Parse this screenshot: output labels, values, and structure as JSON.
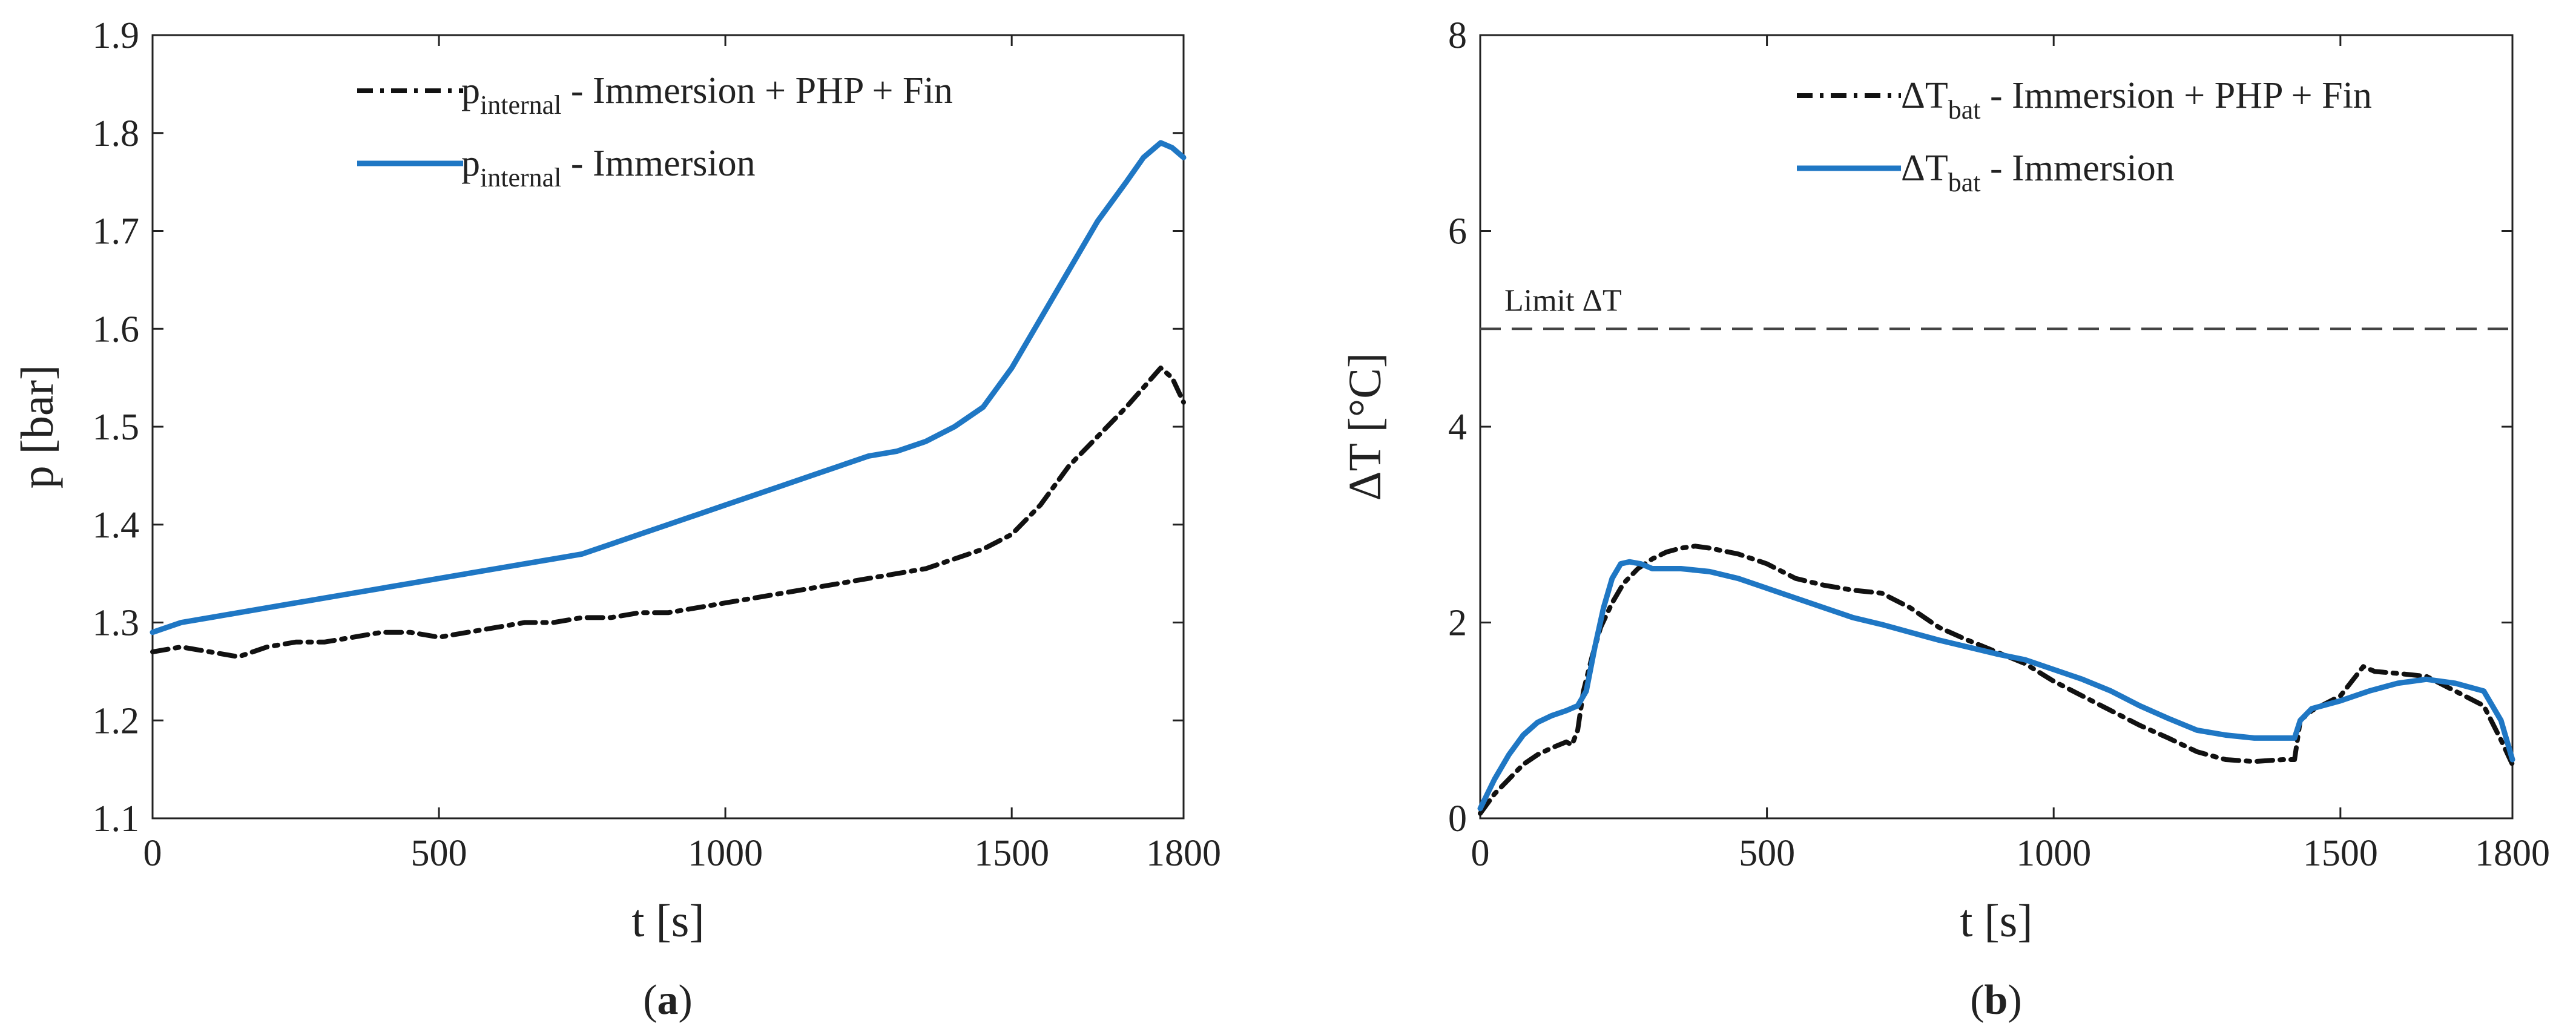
{
  "chart_data": [
    {
      "type": "line",
      "panel": "a",
      "caption_open": "(",
      "caption_letter": "a",
      "caption_close": ")",
      "title": "",
      "xlabel": "t [s]",
      "ylabel": "p [bar]",
      "xlim": [
        0,
        1800
      ],
      "ylim": [
        1.1,
        1.9
      ],
      "xticks": [
        0,
        500,
        1000,
        1500,
        1800
      ],
      "xtick_labels": [
        "0",
        "500",
        "1000",
        "1500",
        "1800"
      ],
      "yticks": [
        1.1,
        1.2,
        1.3,
        1.4,
        1.5,
        1.6,
        1.7,
        1.8,
        1.9
      ],
      "ytick_labels": [
        "1.1",
        "1.2",
        "1.3",
        "1.4",
        "1.5",
        "1.6",
        "1.7",
        "1.8",
        "1.9"
      ],
      "legend_position": "top-right",
      "series": [
        {
          "name": "p_internal - Immersion + PHP + Fin",
          "legend_main": "p",
          "legend_sub": "internal",
          "legend_rest": " - Immersion + PHP + Fin",
          "color": "#111111",
          "style": "dashdot",
          "x": [
            0,
            50,
            100,
            150,
            200,
            250,
            300,
            350,
            400,
            450,
            500,
            550,
            600,
            650,
            700,
            750,
            800,
            850,
            900,
            950,
            1000,
            1050,
            1100,
            1150,
            1200,
            1250,
            1300,
            1350,
            1400,
            1450,
            1500,
            1550,
            1600,
            1650,
            1700,
            1730,
            1760,
            1780,
            1800
          ],
          "y": [
            1.27,
            1.275,
            1.27,
            1.265,
            1.275,
            1.28,
            1.28,
            1.285,
            1.29,
            1.29,
            1.285,
            1.29,
            1.295,
            1.3,
            1.3,
            1.305,
            1.305,
            1.31,
            1.31,
            1.315,
            1.32,
            1.325,
            1.33,
            1.335,
            1.34,
            1.345,
            1.35,
            1.355,
            1.365,
            1.375,
            1.39,
            1.42,
            1.46,
            1.49,
            1.52,
            1.54,
            1.56,
            1.55,
            1.525
          ]
        },
        {
          "name": "p_internal - Immersion",
          "legend_main": "p",
          "legend_sub": "internal",
          "legend_rest": " - Immersion",
          "color": "#1f77c4",
          "style": "solid",
          "x": [
            0,
            50,
            100,
            150,
            200,
            250,
            300,
            350,
            400,
            450,
            500,
            550,
            600,
            650,
            700,
            750,
            800,
            850,
            900,
            950,
            1000,
            1050,
            1100,
            1150,
            1200,
            1250,
            1300,
            1350,
            1400,
            1450,
            1500,
            1550,
            1600,
            1650,
            1700,
            1730,
            1760,
            1780,
            1800
          ],
          "y": [
            1.29,
            1.3,
            1.305,
            1.31,
            1.315,
            1.32,
            1.325,
            1.33,
            1.335,
            1.34,
            1.345,
            1.35,
            1.355,
            1.36,
            1.365,
            1.37,
            1.38,
            1.39,
            1.4,
            1.41,
            1.42,
            1.43,
            1.44,
            1.45,
            1.46,
            1.47,
            1.475,
            1.485,
            1.5,
            1.52,
            1.56,
            1.61,
            1.66,
            1.71,
            1.75,
            1.775,
            1.79,
            1.785,
            1.775
          ]
        }
      ]
    },
    {
      "type": "line",
      "panel": "b",
      "caption_open": "(",
      "caption_letter": "b",
      "caption_close": ")",
      "title": "",
      "xlabel": "t [s]",
      "ylabel": "ΔT [°C]",
      "xlim": [
        0,
        1800
      ],
      "ylim": [
        0,
        8
      ],
      "xticks": [
        0,
        500,
        1000,
        1500,
        1800
      ],
      "xtick_labels": [
        "0",
        "500",
        "1000",
        "1500",
        "1800"
      ],
      "yticks": [
        0,
        2,
        4,
        6,
        8
      ],
      "ytick_labels": [
        "0",
        "2",
        "4",
        "6",
        "8"
      ],
      "legend_position": "top-right",
      "annotations": [
        {
          "text": "Limit ΔT",
          "y": 5,
          "style": "dashed",
          "color": "#444444"
        }
      ],
      "series": [
        {
          "name": "ΔT_bat - Immersion + PHP + Fin",
          "legend_main": "ΔT",
          "legend_sub": "bat",
          "legend_rest": " - Immersion + PHP + Fin",
          "color": "#111111",
          "style": "dashdot",
          "x": [
            0,
            25,
            50,
            75,
            100,
            125,
            150,
            160,
            170,
            180,
            195,
            210,
            230,
            250,
            275,
            300,
            325,
            350,
            375,
            400,
            450,
            500,
            550,
            600,
            650,
            700,
            750,
            800,
            850,
            900,
            950,
            1000,
            1050,
            1100,
            1150,
            1200,
            1250,
            1300,
            1350,
            1400,
            1420,
            1430,
            1450,
            1500,
            1540,
            1560,
            1600,
            1650,
            1700,
            1750,
            1780,
            1800
          ],
          "y": [
            0.05,
            0.25,
            0.4,
            0.55,
            0.65,
            0.72,
            0.78,
            0.75,
            0.9,
            1.3,
            1.65,
            1.95,
            2.2,
            2.4,
            2.55,
            2.65,
            2.72,
            2.76,
            2.78,
            2.76,
            2.7,
            2.6,
            2.45,
            2.38,
            2.33,
            2.3,
            2.15,
            1.95,
            1.82,
            1.7,
            1.58,
            1.4,
            1.25,
            1.1,
            0.95,
            0.82,
            0.68,
            0.6,
            0.58,
            0.6,
            0.6,
            1.0,
            1.1,
            1.25,
            1.55,
            1.5,
            1.48,
            1.45,
            1.3,
            1.15,
            0.8,
            0.55
          ]
        },
        {
          "name": "ΔT_bat - Immersion",
          "legend_main": "ΔT",
          "legend_sub": "bat",
          "legend_rest": " - Immersion",
          "color": "#1f77c4",
          "style": "solid",
          "x": [
            0,
            25,
            50,
            75,
            100,
            125,
            150,
            170,
            185,
            200,
            215,
            230,
            245,
            260,
            280,
            300,
            350,
            400,
            450,
            500,
            550,
            600,
            650,
            700,
            750,
            800,
            850,
            900,
            950,
            1000,
            1050,
            1100,
            1150,
            1200,
            1250,
            1300,
            1350,
            1400,
            1420,
            1430,
            1450,
            1500,
            1550,
            1600,
            1650,
            1700,
            1750,
            1780,
            1800
          ],
          "y": [
            0.1,
            0.4,
            0.65,
            0.85,
            0.98,
            1.05,
            1.1,
            1.15,
            1.3,
            1.75,
            2.15,
            2.45,
            2.6,
            2.62,
            2.6,
            2.55,
            2.55,
            2.52,
            2.45,
            2.35,
            2.25,
            2.15,
            2.05,
            1.98,
            1.9,
            1.82,
            1.75,
            1.68,
            1.62,
            1.52,
            1.42,
            1.3,
            1.15,
            1.02,
            0.9,
            0.85,
            0.82,
            0.82,
            0.82,
            1.0,
            1.12,
            1.2,
            1.3,
            1.38,
            1.42,
            1.38,
            1.3,
            1.0,
            0.6
          ]
        }
      ]
    }
  ]
}
